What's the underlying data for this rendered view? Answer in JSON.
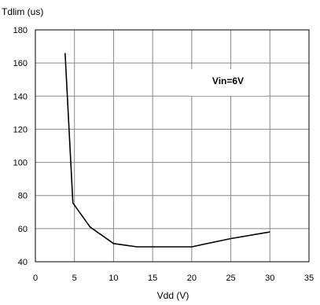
{
  "chart_data": {
    "type": "line",
    "title": "",
    "xlabel": "Vdd (V)",
    "ylabel": "Tdlim (us)",
    "xlim": [
      0,
      35
    ],
    "ylim": [
      40,
      180
    ],
    "xticks": [
      0,
      5,
      10,
      15,
      20,
      25,
      30,
      35
    ],
    "yticks": [
      40,
      60,
      80,
      100,
      120,
      140,
      160,
      180
    ],
    "grid": true,
    "legend": "none",
    "series": [
      {
        "x": [
          3.8,
          4.8,
          7,
          10,
          13,
          15,
          20,
          25,
          30
        ],
        "y": [
          166,
          75.5,
          61,
          51,
          49,
          49,
          49,
          54,
          58
        ]
      }
    ],
    "annotations": [
      {
        "text": "Vin=6V"
      }
    ],
    "colors": {
      "line": "#000000",
      "grid": "#888888",
      "frame": "#000000",
      "annotation_box": "#ffffff"
    }
  }
}
